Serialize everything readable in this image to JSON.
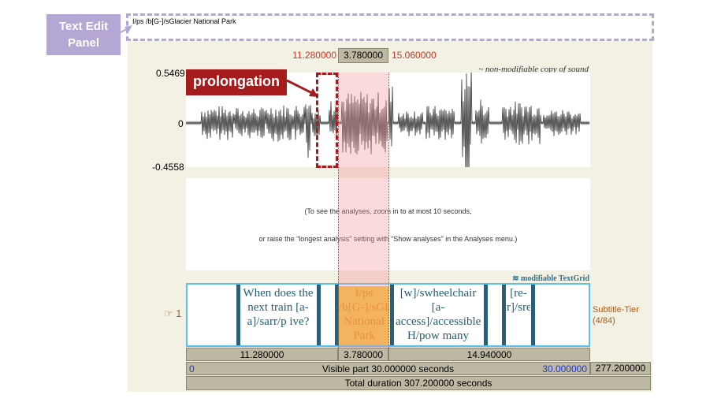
{
  "callout": {
    "label_line1": "Text Edit",
    "label_line2": "Panel"
  },
  "text_panel": {
    "content": "I/ps /b[G-]/sGlacier National Park"
  },
  "selection": {
    "start": "11.280000",
    "duration": "3.780000",
    "end": "15.060000"
  },
  "waveform": {
    "y_max": "0.5469",
    "y_zero": "0",
    "y_min": "-0.4558",
    "title": "non-modifiable copy of sound"
  },
  "prolongation": {
    "label": "prolongation"
  },
  "analysis": {
    "line1": "(To see the analyses, zoom in to at most 10 seconds,",
    "line2": "or raise the “longest analysis” setting with “Show analyses” in the Analyses menu.)"
  },
  "textgrid": {
    "title": "modifiable TextGrid",
    "tier_number": "1",
    "tier_name": "Subtitle-Tier",
    "tier_count": "(4/84)",
    "intervals": [
      {
        "text": "When does the next train [a-a]/sarr/p ive?"
      },
      {
        "text": "I/ps /b[G-]/sGlacier National Park"
      },
      {
        "text": "[w]/swheelchair [a-access]/accessible? H/pow many"
      },
      {
        "text": "[re-r]/srefills"
      }
    ]
  },
  "durations": {
    "left": "11.280000",
    "mid": "3.780000",
    "right": "14.940000",
    "visible_start": "0",
    "visible_text": "Visible part 30.000000 seconds",
    "visible_end": "30.000000",
    "right_total": "277.200000",
    "total_text": "Total duration 307.200000 seconds"
  },
  "colors": {
    "accent_purple": "#b4a7d6",
    "prolong_red": "#a61c1c",
    "selection_fill": "#f6c542"
  }
}
